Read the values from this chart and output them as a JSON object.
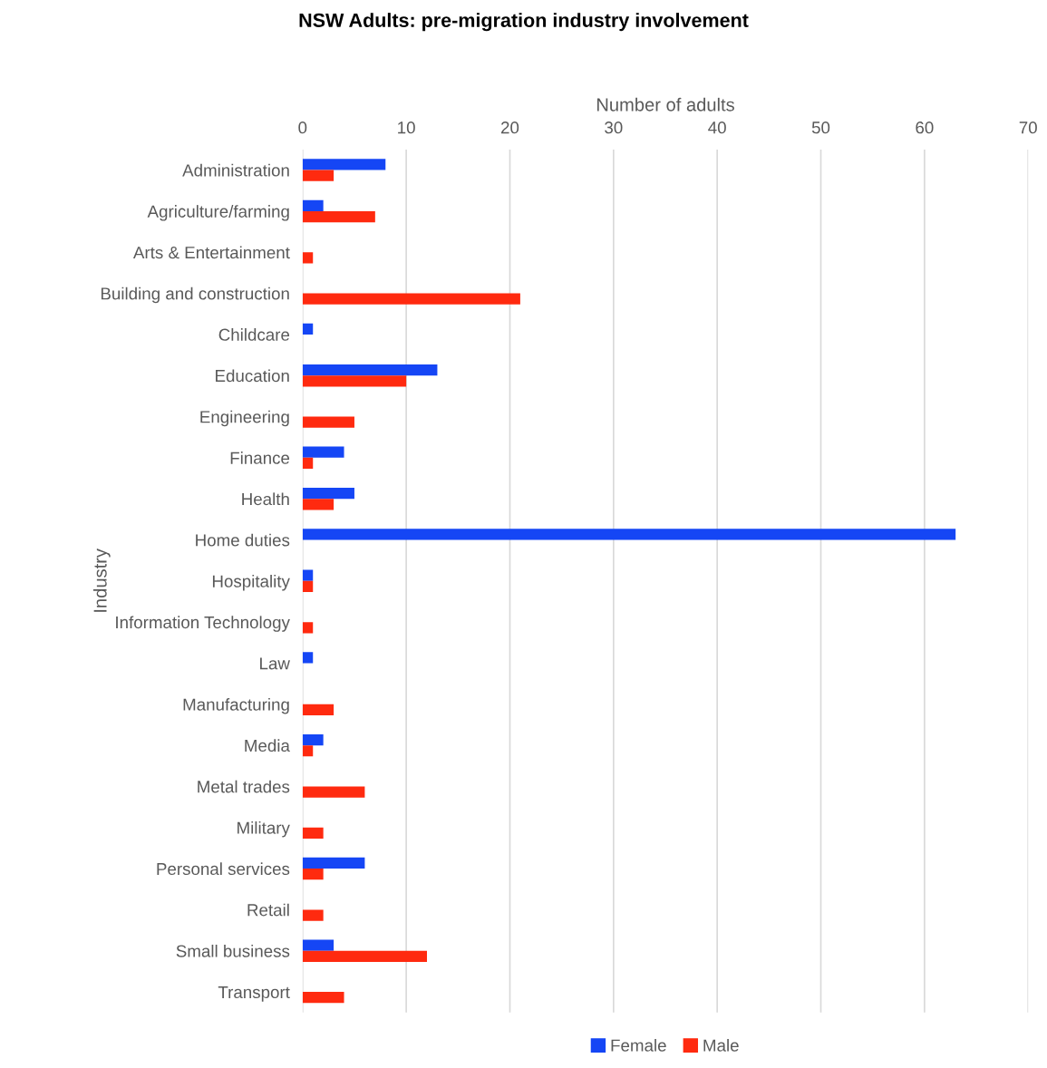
{
  "chart_data": {
    "type": "bar",
    "orientation": "horizontal",
    "title": "NSW Adults: pre-migration industry involvement",
    "xlabel": "Number of adults",
    "ylabel": "Industry",
    "categories": [
      "Administration",
      "Agriculture/farming",
      "Arts & Entertainment",
      "Building and construction",
      "Childcare",
      "Education",
      "Engineering",
      "Finance",
      "Health",
      "Home duties",
      "Hospitality",
      "Information Technology",
      "Law",
      "Manufacturing",
      "Media",
      "Metal trades",
      "Military",
      "Personal services",
      "Retail",
      "Small business",
      "Transport"
    ],
    "series": [
      {
        "name": "Female",
        "color": "#1546f5",
        "values": [
          8,
          2,
          0,
          0,
          1,
          13,
          0,
          4,
          5,
          63,
          1,
          0,
          1,
          0,
          2,
          0,
          0,
          6,
          0,
          3,
          0
        ]
      },
      {
        "name": "Male",
        "color": "#ff2a0f",
        "values": [
          3,
          7,
          1,
          21,
          0,
          10,
          5,
          1,
          3,
          0,
          1,
          1,
          0,
          3,
          1,
          6,
          2,
          2,
          2,
          12,
          4
        ]
      }
    ],
    "xlim": [
      0,
      70
    ],
    "xticks": [
      0,
      10,
      20,
      30,
      40,
      50,
      60,
      70
    ],
    "grid": "x",
    "legend": "bottom"
  }
}
